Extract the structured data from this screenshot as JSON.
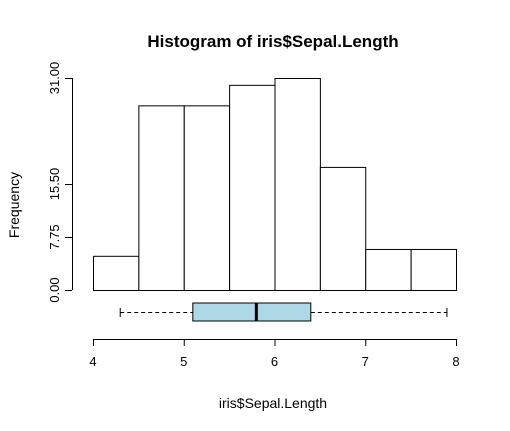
{
  "chart_data": {
    "type": "bar",
    "title": "Histogram of iris$Sepal.Length",
    "xlabel": "iris$Sepal.Length",
    "ylabel": "Frequency",
    "bins": [
      {
        "from": 4.0,
        "to": 4.5,
        "count": 5
      },
      {
        "from": 4.5,
        "to": 5.0,
        "count": 27
      },
      {
        "from": 5.0,
        "to": 5.5,
        "count": 27
      },
      {
        "from": 5.5,
        "to": 6.0,
        "count": 30
      },
      {
        "from": 6.0,
        "to": 6.5,
        "count": 31
      },
      {
        "from": 6.5,
        "to": 7.0,
        "count": 18
      },
      {
        "from": 7.0,
        "to": 7.5,
        "count": 6
      },
      {
        "from": 7.5,
        "to": 8.0,
        "count": 6
      }
    ],
    "xlim": [
      4,
      8
    ],
    "ylim": [
      0,
      31
    ],
    "xticks": [
      "4",
      "5",
      "6",
      "7",
      "8"
    ],
    "yticks": [
      "0.00",
      "7.75",
      "15.50",
      "31.00"
    ],
    "ytick_values": [
      0,
      7.75,
      15.5,
      31
    ],
    "boxplot": {
      "min": 4.3,
      "q1": 5.1,
      "median": 5.8,
      "q3": 6.4,
      "max": 7.9,
      "fill": "#add8e6"
    },
    "bar_fill": "#ffffff",
    "grid": false
  }
}
